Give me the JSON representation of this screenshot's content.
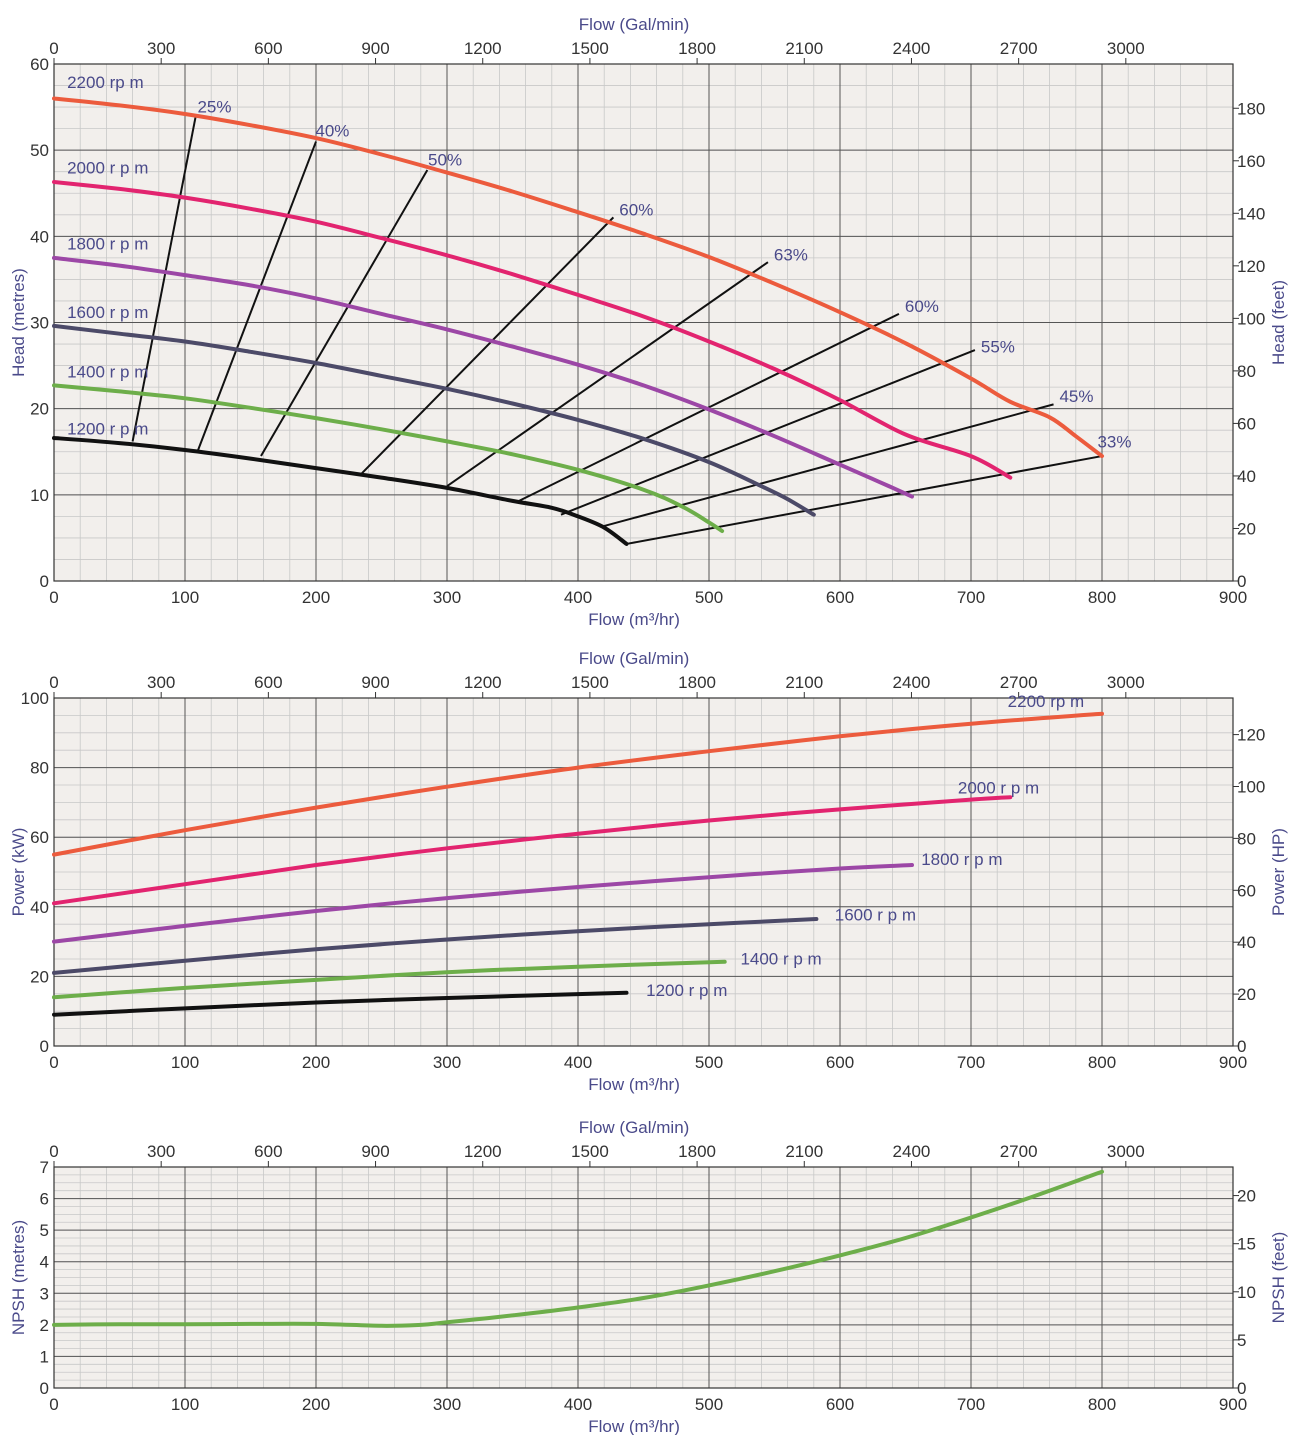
{
  "colors": {
    "plot_bg": "#f2efec",
    "grid_minor": "#c8c8c8",
    "grid_major": "#555555",
    "tick_text": "#333333",
    "label_text": "#4a4a8a",
    "rpm_2200": "#ec5b3d",
    "rpm_2000": "#e2246f",
    "rpm_1800": "#9c47a6",
    "rpm_1600": "#4c4a68",
    "rpm_1400": "#6dae4a",
    "rpm_1200": "#111111",
    "efficiency": "#111111",
    "npsh": "#6dae4a"
  },
  "chart_data": [
    {
      "name": "head-chart",
      "type": "line",
      "x_top_label": "Flow (Gal/min)",
      "x_top_ticks": [
        "0",
        "300",
        "600",
        "900",
        "1200",
        "1500",
        "1800",
        "2100",
        "2400",
        "2700",
        "3000"
      ],
      "x_top_max": 3300,
      "xlabel": "Flow (m³/hr)",
      "xlim": [
        0,
        900
      ],
      "x_ticks": [
        "0",
        "100",
        "200",
        "300",
        "400",
        "500",
        "600",
        "700",
        "800",
        "900"
      ],
      "ylabel": "Head (metres)",
      "ylim": [
        0,
        60
      ],
      "y_ticks": [
        "0",
        "10",
        "20",
        "30",
        "40",
        "50",
        "60"
      ],
      "y2label": "Head (feet)",
      "y2lim": [
        0,
        196.85
      ],
      "y2_ticks": [
        "0",
        "20",
        "40",
        "60",
        "80",
        "100",
        "120",
        "140",
        "160",
        "180"
      ],
      "grid": true,
      "series": [
        {
          "name": "2200 rp m",
          "color_key": "rpm_2200",
          "label_at": [
            10,
            57.2
          ],
          "x": [
            0,
            50,
            100,
            150,
            200,
            250,
            300,
            350,
            400,
            450,
            500,
            550,
            600,
            650,
            700,
            730,
            760,
            780,
            800
          ],
          "y": [
            56,
            55.2,
            54.2,
            52.9,
            51.4,
            49.5,
            47.4,
            45.2,
            42.8,
            40.3,
            37.6,
            34.5,
            31.2,
            27.6,
            23.5,
            20.8,
            19.0,
            16.8,
            14.5
          ]
        },
        {
          "name": "2000 r  p m",
          "color_key": "rpm_2000",
          "label_at": [
            10,
            47.3
          ],
          "x": [
            0,
            50,
            100,
            150,
            200,
            250,
            300,
            350,
            400,
            450,
            500,
            550,
            600,
            650,
            700,
            730
          ],
          "y": [
            46.3,
            45.5,
            44.5,
            43.2,
            41.7,
            39.8,
            37.8,
            35.6,
            33.2,
            30.7,
            27.8,
            24.6,
            21.0,
            17.0,
            14.5,
            12.0
          ]
        },
        {
          "name": "1800 r  p m",
          "color_key": "rpm_1800",
          "label_at": [
            10,
            38.5
          ],
          "x": [
            0,
            50,
            100,
            150,
            200,
            250,
            300,
            350,
            400,
            450,
            500,
            550,
            600,
            630,
            655
          ],
          "y": [
            37.5,
            36.6,
            35.5,
            34.3,
            32.8,
            31.0,
            29.2,
            27.2,
            25.1,
            22.7,
            19.9,
            16.8,
            13.5,
            11.5,
            9.8
          ]
        },
        {
          "name": "1600 r  p m",
          "color_key": "rpm_1600",
          "label_at": [
            10,
            30.5
          ],
          "x": [
            0,
            50,
            100,
            150,
            200,
            250,
            300,
            350,
            400,
            450,
            500,
            540,
            560,
            580
          ],
          "y": [
            29.6,
            28.7,
            27.8,
            26.6,
            25.3,
            23.8,
            22.3,
            20.6,
            18.7,
            16.5,
            13.8,
            11.0,
            9.5,
            7.7
          ]
        },
        {
          "name": "1400 r  p m",
          "color_key": "rpm_1400",
          "label_at": [
            10,
            23.6
          ],
          "x": [
            0,
            50,
            100,
            150,
            200,
            250,
            300,
            350,
            400,
            450,
            480,
            500,
            510
          ],
          "y": [
            22.7,
            22.0,
            21.2,
            20.1,
            18.9,
            17.6,
            16.2,
            14.7,
            12.9,
            10.6,
            8.6,
            6.8,
            5.8
          ]
        },
        {
          "name": "1200 r  p m",
          "color_key": "rpm_1200",
          "label_at": [
            10,
            17.0
          ],
          "x": [
            0,
            50,
            100,
            150,
            200,
            250,
            300,
            350,
            380,
            400,
            420,
            437
          ],
          "y": [
            16.6,
            16.0,
            15.2,
            14.2,
            13.1,
            12.0,
            10.8,
            9.3,
            8.5,
            7.5,
            6.2,
            4.3
          ]
        }
      ],
      "efficiency_lines": [
        {
          "label": "25%",
          "x": [
            60,
            108
          ],
          "y": [
            16.2,
            53.8
          ],
          "label_at": [
            108,
            54.4
          ]
        },
        {
          "label": "40%",
          "x": [
            110,
            200
          ],
          "y": [
            15.2,
            51.0
          ],
          "label_at": [
            198,
            51.6
          ]
        },
        {
          "label": "50%",
          "x": [
            158,
            285
          ],
          "y": [
            14.5,
            47.7
          ],
          "label_at": [
            284,
            48.2
          ]
        },
        {
          "label": "60%",
          "x": [
            235,
            427
          ],
          "y": [
            12.5,
            42.2
          ],
          "label_at": [
            430,
            42.4
          ]
        },
        {
          "label": "63%",
          "x": [
            300,
            545
          ],
          "y": [
            11.0,
            37.0
          ],
          "label_at": [
            548,
            37.2
          ]
        },
        {
          "label": "60%",
          "x": [
            355,
            645
          ],
          "y": [
            9.3,
            31.0
          ],
          "label_at": [
            648,
            31.2
          ]
        },
        {
          "label": "55%",
          "x": [
            387,
            703
          ],
          "y": [
            7.7,
            26.8
          ],
          "label_at": [
            706,
            26.5
          ]
        },
        {
          "label": "45%",
          "x": [
            418,
            763
          ],
          "y": [
            6.3,
            20.5
          ],
          "label_at": [
            766,
            20.8
          ]
        },
        {
          "label": "33%",
          "x": [
            437,
            800
          ],
          "y": [
            4.3,
            14.5
          ],
          "label_at": [
            795,
            15.5
          ]
        }
      ]
    },
    {
      "name": "power-chart",
      "type": "line",
      "x_top_label": "Flow (Gal/min)",
      "x_top_ticks": [
        "0",
        "300",
        "600",
        "900",
        "1200",
        "1500",
        "1800",
        "2100",
        "2400",
        "2700",
        "3000"
      ],
      "x_top_max": 3300,
      "xlabel": "Flow (m³/hr)",
      "xlim": [
        0,
        900
      ],
      "x_ticks": [
        "0",
        "100",
        "200",
        "300",
        "400",
        "500",
        "600",
        "700",
        "800",
        "900"
      ],
      "ylabel": "Power (kW)",
      "ylim": [
        0,
        100
      ],
      "y_ticks": [
        "0",
        "20",
        "40",
        "60",
        "80",
        "100"
      ],
      "y2label": "Power (HP)",
      "y2lim": [
        0,
        134.1
      ],
      "y2_ticks": [
        "0",
        "20",
        "40",
        "60",
        "80",
        "100",
        "120"
      ],
      "grid": true,
      "series": [
        {
          "name": "2200  rp m",
          "color_key": "rpm_2200",
          "label_at": [
            728,
            97.4
          ],
          "x": [
            0,
            100,
            200,
            300,
            400,
            500,
            600,
            700,
            800
          ],
          "y": [
            55,
            62,
            68.5,
            74.5,
            80,
            84.7,
            89,
            92.6,
            95.5
          ]
        },
        {
          "name": "2000 r  p m",
          "color_key": "rpm_2000",
          "label_at": [
            690,
            72.5
          ],
          "x": [
            0,
            100,
            200,
            300,
            400,
            500,
            600,
            700,
            730
          ],
          "y": [
            41,
            46.5,
            52,
            56.8,
            61,
            64.8,
            68,
            70.8,
            71.5
          ]
        },
        {
          "name": "1800 r  p m",
          "color_key": "rpm_1800",
          "label_at": [
            662,
            52
          ],
          "x": [
            0,
            100,
            200,
            300,
            400,
            500,
            600,
            655
          ],
          "y": [
            30,
            34.5,
            38.8,
            42.5,
            45.7,
            48.5,
            51,
            52
          ]
        },
        {
          "name": "1600 r  p m",
          "color_key": "rpm_1600",
          "label_at": [
            596,
            36
          ],
          "x": [
            0,
            100,
            200,
            300,
            400,
            500,
            582
          ],
          "y": [
            21,
            24.5,
            27.8,
            30.6,
            33,
            35,
            36.5
          ]
        },
        {
          "name": "1400 r  p m",
          "color_key": "rpm_1400",
          "label_at": [
            524,
            23.4
          ],
          "x": [
            0,
            100,
            200,
            300,
            400,
            512
          ],
          "y": [
            14,
            16.7,
            19,
            21.2,
            22.8,
            24.2
          ]
        },
        {
          "name": "1200 r  p m",
          "color_key": "rpm_1200",
          "label_at": [
            452,
            14.4
          ],
          "x": [
            0,
            100,
            200,
            300,
            400,
            437
          ],
          "y": [
            9,
            10.8,
            12.5,
            13.8,
            14.9,
            15.3
          ]
        }
      ]
    },
    {
      "name": "npsh-chart",
      "type": "line",
      "x_top_label": "Flow (Gal/min)",
      "x_top_ticks": [
        "0",
        "300",
        "600",
        "900",
        "1200",
        "1500",
        "1800",
        "2100",
        "2400",
        "2700",
        "3000"
      ],
      "x_top_max": 3300,
      "xlabel": "Flow (m³/hr)",
      "xlim": [
        0,
        900
      ],
      "x_ticks": [
        "0",
        "100",
        "200",
        "300",
        "400",
        "500",
        "600",
        "700",
        "800",
        "900"
      ],
      "ylabel": "NPSH (metres)",
      "ylim": [
        0,
        7
      ],
      "y_ticks": [
        "0",
        "1",
        "2",
        "3",
        "4",
        "5",
        "6",
        "7"
      ],
      "y2label": "NPSH (feet)",
      "y2lim": [
        0,
        22.97
      ],
      "y2_ticks": [
        "0",
        "5",
        "10",
        "15",
        "20"
      ],
      "grid": true,
      "series": [
        {
          "name": "",
          "color_key": "npsh",
          "label_at": null,
          "x": [
            0,
            50,
            100,
            150,
            200,
            250,
            280,
            300,
            350,
            400,
            450,
            500,
            550,
            600,
            650,
            700,
            750,
            800
          ],
          "y": [
            2.0,
            2.02,
            2.02,
            2.03,
            2.03,
            1.97,
            2.0,
            2.08,
            2.3,
            2.55,
            2.85,
            3.25,
            3.7,
            4.2,
            4.75,
            5.4,
            6.1,
            6.85
          ]
        }
      ]
    }
  ]
}
